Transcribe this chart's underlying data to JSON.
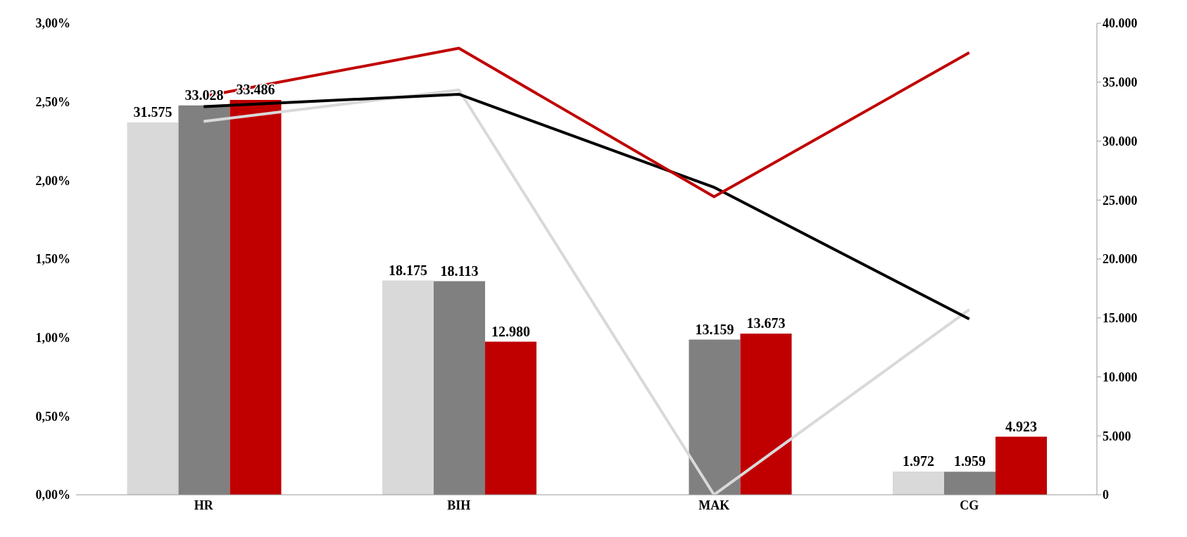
{
  "chart_data": {
    "type": "bar",
    "categories": [
      "HR",
      "BIH",
      "MAK",
      "CG"
    ],
    "series": [
      {
        "axis": "y2",
        "color": "#d9d9d9",
        "values": [
          31575,
          18175,
          null,
          1972
        ],
        "value_labels": [
          "31.575",
          "18.175",
          null,
          "1.972"
        ]
      },
      {
        "axis": "y2",
        "color": "#808080",
        "values": [
          33028,
          18113,
          13159,
          1959
        ],
        "value_labels": [
          "33.028",
          "18.113",
          "13.159",
          "1.959"
        ]
      },
      {
        "axis": "y2",
        "color": "#c00000",
        "values": [
          33486,
          12980,
          13673,
          4923
        ],
        "value_labels": [
          "33.486",
          "12.980",
          "13.673",
          "4.923"
        ]
      },
      {
        "type": "line",
        "axis": "y",
        "color": "#d9d9d9",
        "values": [
          2.375,
          2.576,
          0,
          1.178
        ]
      },
      {
        "type": "line",
        "axis": "y",
        "color": "#000000",
        "values": [
          2.469,
          2.548,
          1.956,
          1.118
        ]
      },
      {
        "type": "line",
        "axis": "y",
        "color": "#c00000",
        "values": [
          2.534,
          2.841,
          1.896,
          2.813
        ]
      }
    ],
    "ylim": [
      0,
      3
    ],
    "yticks": [
      {
        "value": 0,
        "label": "0,00%"
      },
      {
        "value": 0.5,
        "label": "0,50%"
      },
      {
        "value": 1,
        "label": "1,00%"
      },
      {
        "value": 1.5,
        "label": "1,50%"
      },
      {
        "value": 2,
        "label": "2,00%"
      },
      {
        "value": 2.5,
        "label": "2,50%"
      },
      {
        "value": 3,
        "label": "3,00%"
      }
    ],
    "y2lim": [
      0,
      40000
    ],
    "y2ticks": [
      {
        "value": 0,
        "label": "0"
      },
      {
        "value": 5000,
        "label": "5.000"
      },
      {
        "value": 10000,
        "label": "10.000"
      },
      {
        "value": 15000,
        "label": "15.000"
      },
      {
        "value": 20000,
        "label": "20.000"
      },
      {
        "value": 25000,
        "label": "25.000"
      },
      {
        "value": 30000,
        "label": "30.000"
      },
      {
        "value": 35000,
        "label": "35.000"
      },
      {
        "value": 40000,
        "label": "40.000"
      }
    ],
    "grid": false,
    "legend": false,
    "marker": "none",
    "line_style": "solid"
  }
}
